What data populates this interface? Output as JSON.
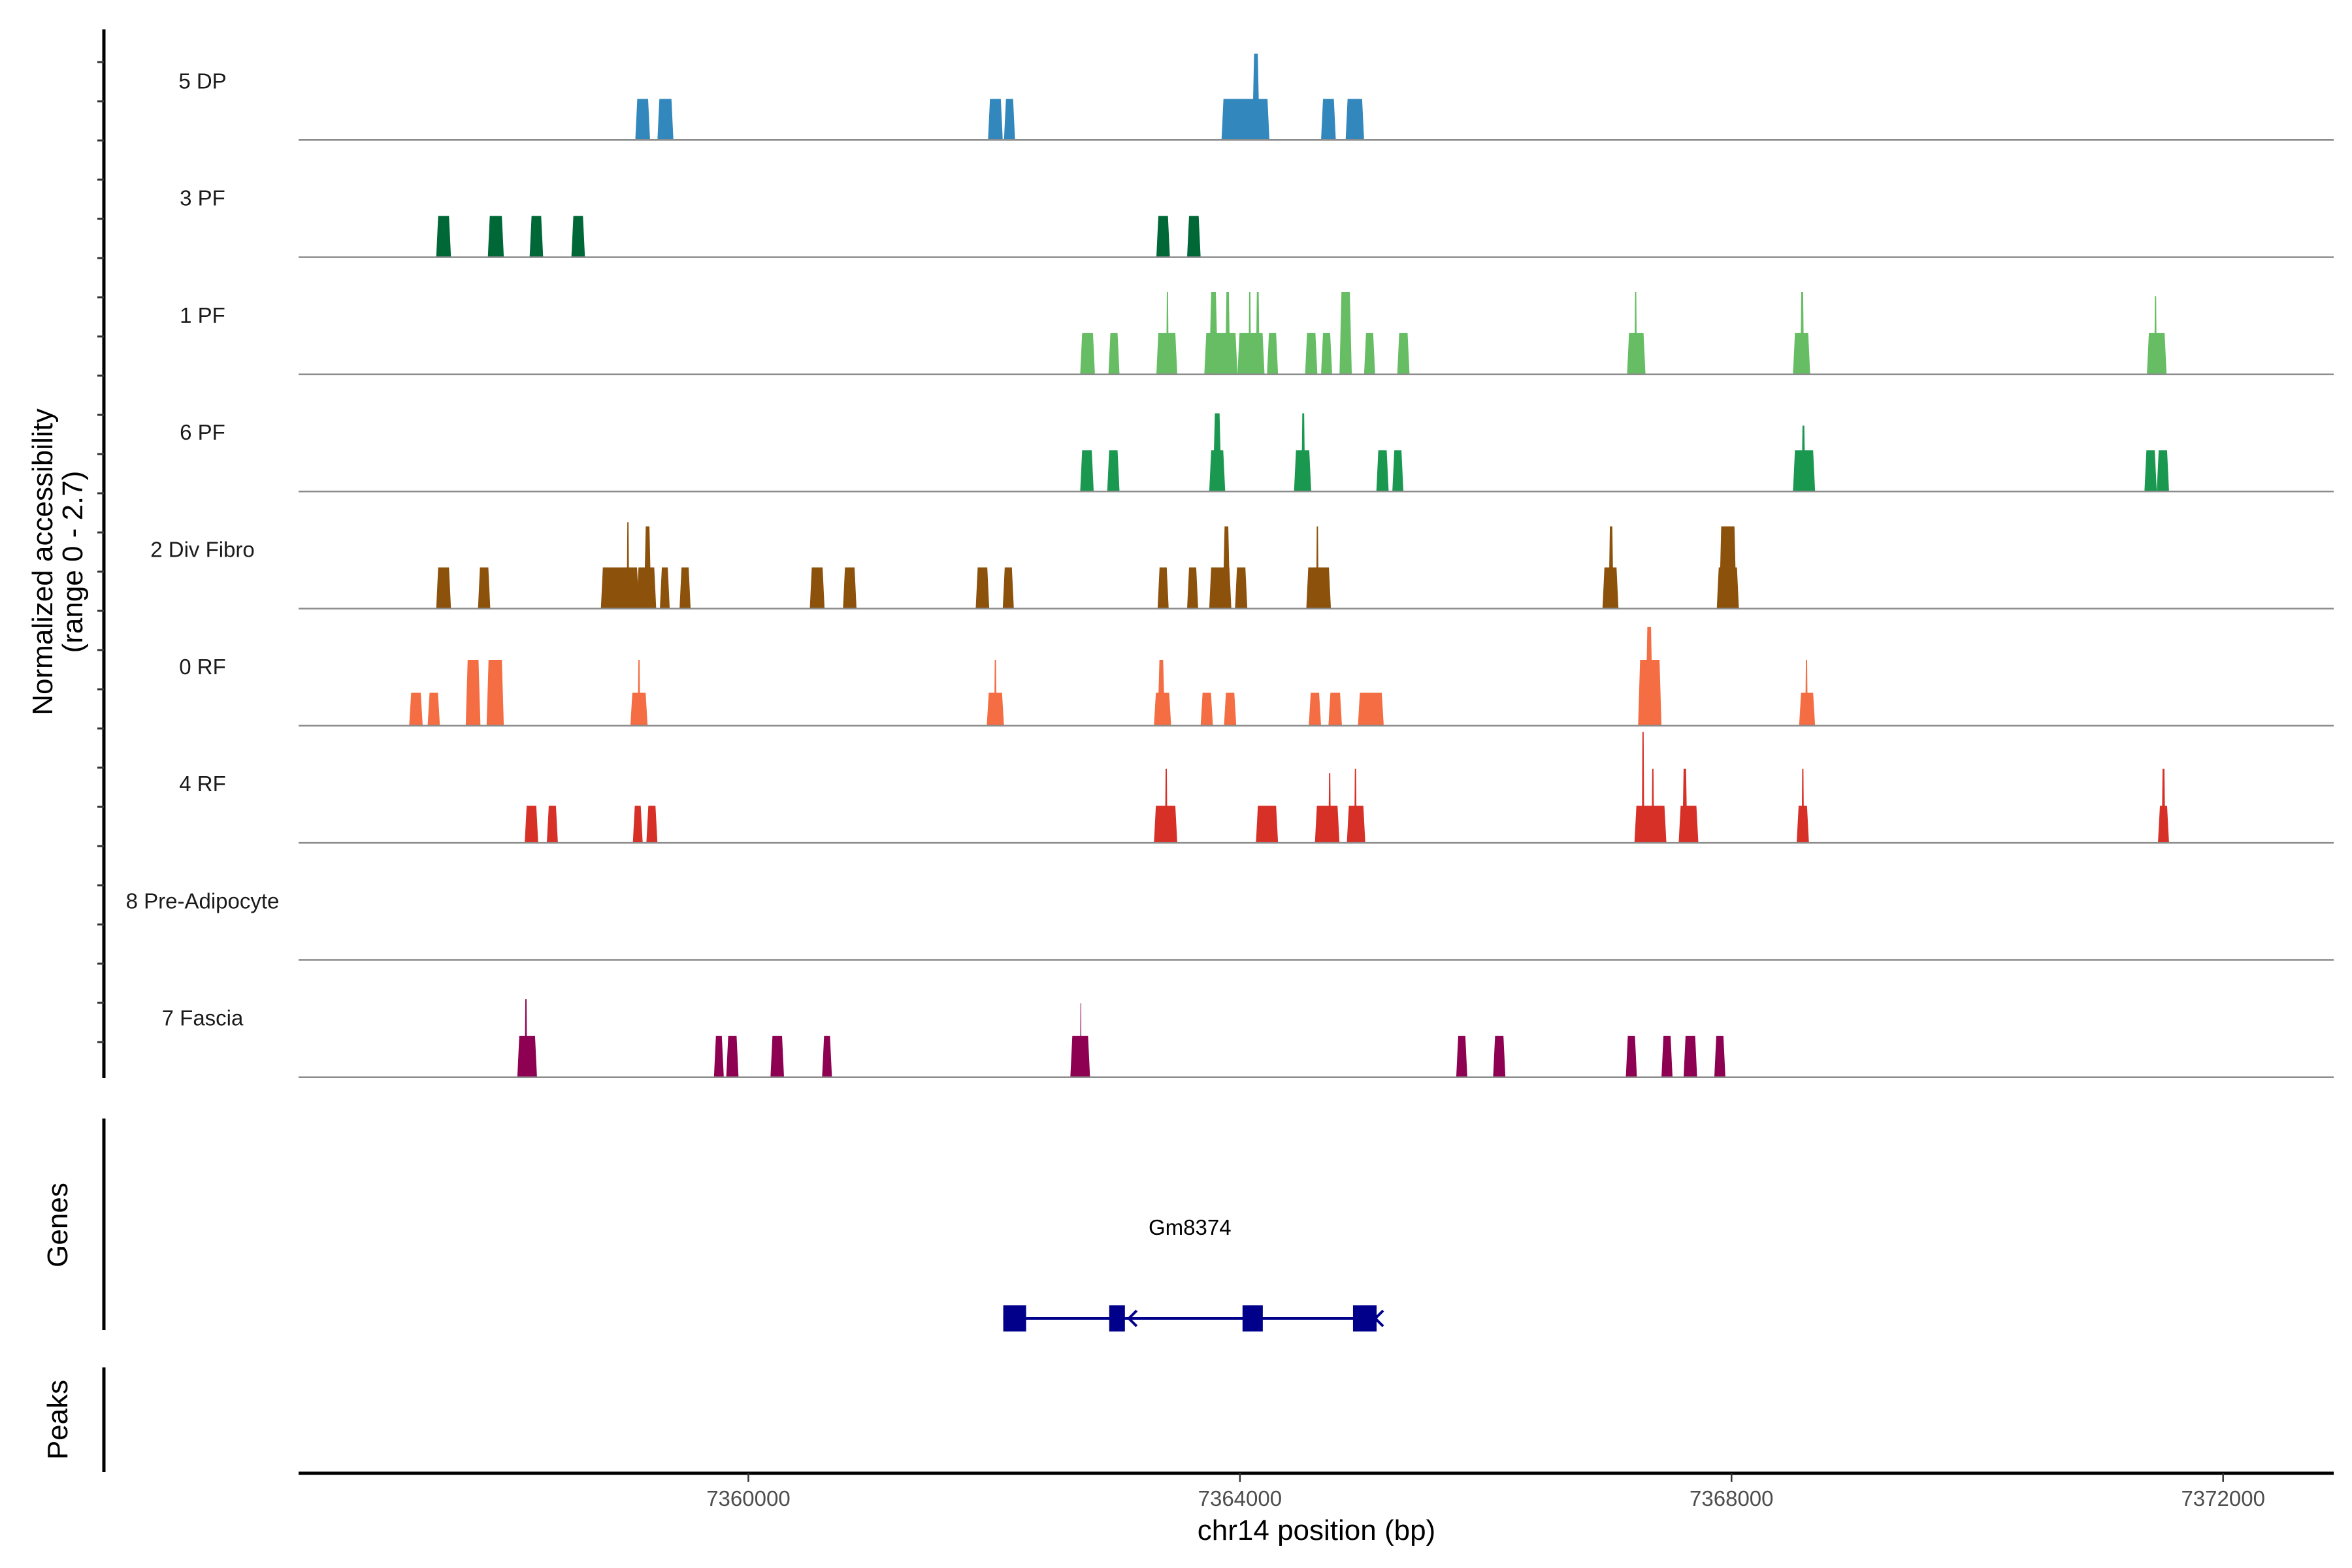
{
  "chart_data": {
    "type": "area",
    "title": "",
    "xlabel": "chr14 position (bp)",
    "ylabel": "Normalized accessibility",
    "ylabel_sub": "(range 0 - 2.7)",
    "ylim": [
      0,
      2.7
    ],
    "xlim": [
      7356340,
      7372900
    ],
    "x_ticks": [
      7360000,
      7364000,
      7368000,
      7372000
    ],
    "x_tick_labels": [
      "7360000",
      "7364000",
      "7368000",
      "7372000"
    ],
    "grid": false,
    "tracks": [
      {
        "name": "5 DP",
        "color": "#3288BD",
        "peaks": [
          [
            7359080,
            7359200,
            1.0
          ],
          [
            7359260,
            7359390,
            1.0
          ],
          [
            7361950,
            7362070,
            1.0
          ],
          [
            7362080,
            7362170,
            1.0
          ],
          [
            7363850,
            7364240,
            1.0
          ],
          [
            7364100,
            7364160,
            2.1
          ],
          [
            7364660,
            7364780,
            1.0
          ],
          [
            7364860,
            7365010,
            1.0
          ]
        ]
      },
      {
        "name": "3 PF",
        "color": "#006837",
        "peaks": [
          [
            7357460,
            7357580,
            1.0
          ],
          [
            7357880,
            7358010,
            1.0
          ],
          [
            7358220,
            7358330,
            1.0
          ],
          [
            7358560,
            7358670,
            1.0
          ],
          [
            7363320,
            7363430,
            1.0
          ],
          [
            7363570,
            7363680,
            1.0
          ]
        ]
      },
      {
        "name": "1 PF",
        "color": "#66BD63",
        "peaks": [
          [
            7362700,
            7362820,
            1.0
          ],
          [
            7362930,
            7363020,
            1.0
          ],
          [
            7363320,
            7363490,
            1.0
          ],
          [
            7363400,
            7363420,
            2.0
          ],
          [
            7363710,
            7363980,
            1.0
          ],
          [
            7363750,
            7363820,
            2.0
          ],
          [
            7363880,
            7363920,
            2.0
          ],
          [
            7363980,
            7364200,
            1.0
          ],
          [
            7364070,
            7364090,
            2.0
          ],
          [
            7364130,
            7364160,
            2.0
          ],
          [
            7364220,
            7364310,
            1.0
          ],
          [
            7364530,
            7364630,
            1.0
          ],
          [
            7364660,
            7364750,
            1.0
          ],
          [
            7364810,
            7364910,
            2.0
          ],
          [
            7365010,
            7365100,
            1.0
          ],
          [
            7365280,
            7365380,
            1.0
          ],
          [
            7367150,
            7367300,
            1.0
          ],
          [
            7367210,
            7367230,
            2.0
          ],
          [
            7368500,
            7368640,
            1.0
          ],
          [
            7368560,
            7368590,
            2.0
          ],
          [
            7371380,
            7371540,
            1.0
          ],
          [
            7371440,
            7371460,
            1.9
          ]
        ]
      },
      {
        "name": "6 PF",
        "color": "#1A9850",
        "peaks": [
          [
            7362700,
            7362810,
            1.0
          ],
          [
            7362920,
            7363020,
            1.0
          ],
          [
            7363750,
            7363880,
            1.0
          ],
          [
            7363780,
            7363850,
            1.9
          ],
          [
            7364440,
            7364580,
            1.0
          ],
          [
            7364500,
            7364530,
            1.9
          ],
          [
            7365110,
            7365210,
            1.0
          ],
          [
            7365240,
            7365330,
            1.0
          ],
          [
            7368500,
            7368680,
            1.0
          ],
          [
            7368570,
            7368600,
            1.6
          ],
          [
            7371360,
            7371460,
            1.0
          ],
          [
            7371460,
            7371560,
            1.0
          ]
        ]
      },
      {
        "name": "2 Div Fibro",
        "color": "#8C510A",
        "peaks": [
          [
            7357460,
            7357580,
            1.0
          ],
          [
            7357800,
            7357900,
            1.0
          ],
          [
            7358800,
            7359110,
            1.0
          ],
          [
            7359010,
            7359030,
            2.1
          ],
          [
            7359090,
            7359250,
            1.0
          ],
          [
            7359150,
            7359210,
            2.0
          ],
          [
            7359280,
            7359360,
            1.0
          ],
          [
            7359440,
            7359530,
            1.0
          ],
          [
            7360500,
            7360620,
            1.0
          ],
          [
            7360770,
            7360880,
            1.0
          ],
          [
            7361850,
            7361960,
            1.0
          ],
          [
            7362070,
            7362160,
            1.0
          ],
          [
            7363330,
            7363420,
            1.0
          ],
          [
            7363570,
            7363660,
            1.0
          ],
          [
            7363750,
            7363930,
            1.0
          ],
          [
            7363860,
            7363920,
            2.0
          ],
          [
            7363960,
            7364060,
            1.0
          ],
          [
            7364540,
            7364740,
            1.0
          ],
          [
            7364620,
            7364640,
            2.0
          ],
          [
            7366950,
            7367080,
            1.0
          ],
          [
            7367000,
            7367040,
            2.0
          ],
          [
            7367880,
            7368060,
            1.0
          ],
          [
            7367900,
            7368040,
            2.0
          ]
        ]
      },
      {
        "name": "0 RF",
        "color": "#F46D43",
        "peaks": [
          [
            7357240,
            7357350,
            0.8
          ],
          [
            7357390,
            7357490,
            0.8
          ],
          [
            7357700,
            7357820,
            1.6
          ],
          [
            7357870,
            7358010,
            1.6
          ],
          [
            7359040,
            7359180,
            0.8
          ],
          [
            7359100,
            7359120,
            1.6
          ],
          [
            7361940,
            7362080,
            0.8
          ],
          [
            7362000,
            7362020,
            1.6
          ],
          [
            7363300,
            7363440,
            0.8
          ],
          [
            7363330,
            7363390,
            1.6
          ],
          [
            7363680,
            7363780,
            0.8
          ],
          [
            7363870,
            7363970,
            0.8
          ],
          [
            7364560,
            7364660,
            0.8
          ],
          [
            7364720,
            7364830,
            0.8
          ],
          [
            7364960,
            7365170,
            0.8
          ],
          [
            7367240,
            7367430,
            1.6
          ],
          [
            7367300,
            7367360,
            2.4
          ],
          [
            7368550,
            7368680,
            0.8
          ],
          [
            7368600,
            7368620,
            1.6
          ]
        ]
      },
      {
        "name": "4 RF",
        "color": "#D73027",
        "peaks": [
          [
            7358180,
            7358290,
            0.9
          ],
          [
            7358360,
            7358450,
            0.9
          ],
          [
            7359060,
            7359140,
            0.9
          ],
          [
            7359170,
            7359260,
            0.9
          ],
          [
            7363300,
            7363490,
            0.9
          ],
          [
            7363390,
            7363410,
            1.8
          ],
          [
            7364130,
            7364310,
            0.9
          ],
          [
            7364610,
            7364810,
            0.9
          ],
          [
            7364720,
            7364740,
            1.7
          ],
          [
            7364870,
            7365020,
            0.9
          ],
          [
            7364930,
            7364950,
            1.8
          ],
          [
            7367210,
            7367470,
            0.9
          ],
          [
            7367270,
            7367290,
            2.7
          ],
          [
            7367350,
            7367370,
            1.8
          ],
          [
            7367570,
            7367730,
            0.9
          ],
          [
            7367600,
            7367640,
            1.8
          ],
          [
            7368530,
            7368630,
            0.9
          ],
          [
            7368570,
            7368590,
            1.8
          ],
          [
            7371470,
            7371560,
            0.9
          ],
          [
            7371500,
            7371530,
            1.8
          ]
        ]
      },
      {
        "name": "8 Pre-Adipocyte",
        "color": "#C51B7D",
        "peaks": []
      },
      {
        "name": "7 Fascia",
        "color": "#8E0152",
        "peaks": [
          [
            7358120,
            7358280,
            1.0
          ],
          [
            7358180,
            7358200,
            1.9
          ],
          [
            7359720,
            7359800,
            1.0
          ],
          [
            7359820,
            7359920,
            1.0
          ],
          [
            7360180,
            7360290,
            1.0
          ],
          [
            7360600,
            7360680,
            1.0
          ],
          [
            7362620,
            7362780,
            1.0
          ],
          [
            7362700,
            7362710,
            1.8
          ],
          [
            7365760,
            7365850,
            1.0
          ],
          [
            7366060,
            7366160,
            1.0
          ],
          [
            7367140,
            7367230,
            1.0
          ],
          [
            7367430,
            7367520,
            1.0
          ],
          [
            7367610,
            7367720,
            1.0
          ],
          [
            7367860,
            7367950,
            1.0
          ]
        ]
      }
    ],
    "genes": [
      {
        "name": "Gm8374",
        "strand": "-",
        "start": 7362074,
        "end": 7365112,
        "exons": [
          [
            7362074,
            7362260
          ],
          [
            7362936,
            7363064
          ],
          [
            7364021,
            7364186
          ],
          [
            7364920,
            7365112
          ]
        ],
        "color": "#00008B"
      }
    ],
    "panels": [
      "Genes",
      "Peaks"
    ]
  }
}
